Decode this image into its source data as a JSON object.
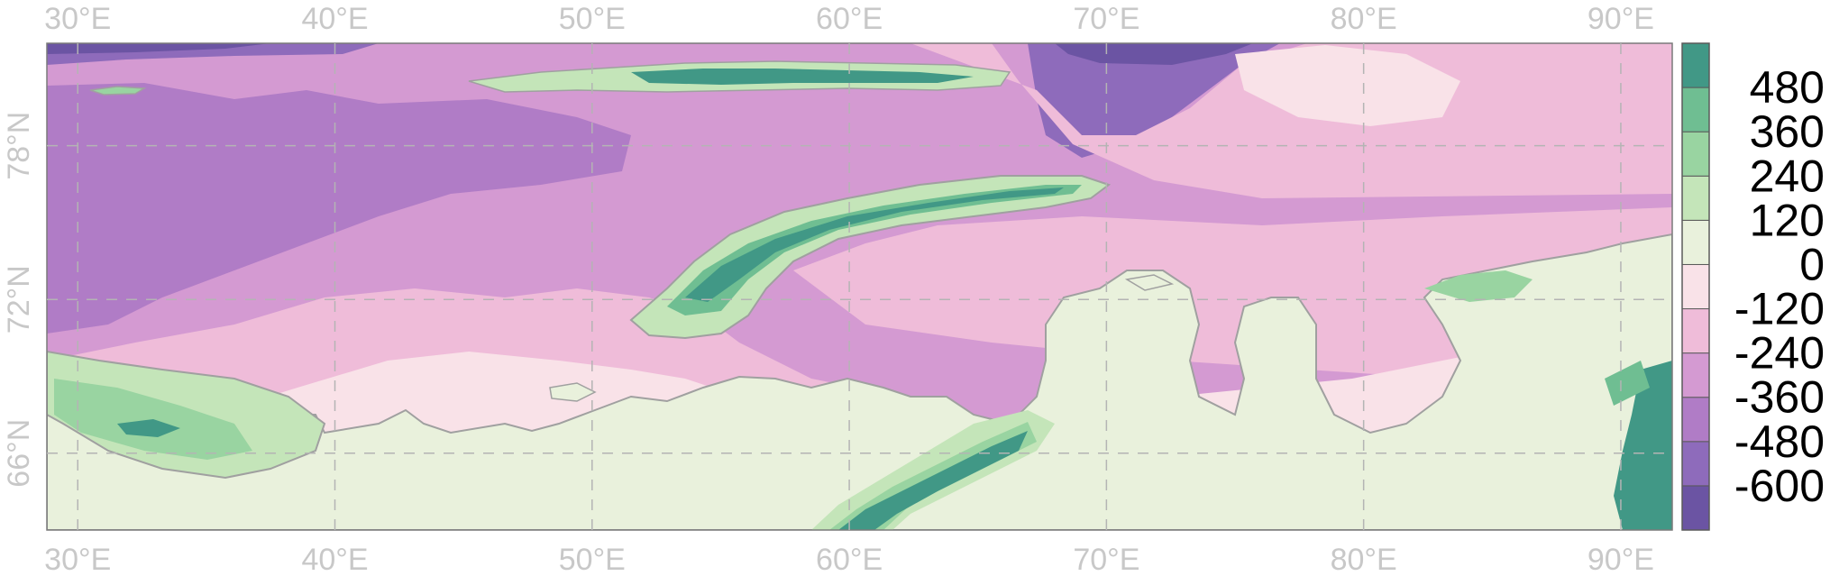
{
  "chart_data": {
    "type": "heatmap",
    "title": "",
    "xlabel": "",
    "ylabel": "",
    "projection": "equirectangular",
    "lon_range": [
      28.8,
      92.0
    ],
    "lat_range": [
      63.0,
      82.0
    ],
    "x_ticks": [
      {
        "value": 30,
        "label": "30°E"
      },
      {
        "value": 40,
        "label": "40°E"
      },
      {
        "value": 50,
        "label": "50°E"
      },
      {
        "value": 60,
        "label": "60°E"
      },
      {
        "value": 70,
        "label": "70°E"
      },
      {
        "value": 80,
        "label": "80°E"
      },
      {
        "value": 90,
        "label": "90°E"
      }
    ],
    "y_ticks": [
      {
        "value": 66,
        "label": "66°N"
      },
      {
        "value": 72,
        "label": "72°N"
      },
      {
        "value": 78,
        "label": "78°N"
      }
    ],
    "grid": true,
    "colorbar": {
      "position": "right",
      "levels": [
        -720,
        -600,
        -480,
        -360,
        -240,
        -120,
        0,
        120,
        240,
        360,
        480,
        600
      ],
      "tick_labels": [
        "480",
        "360",
        "240",
        "120",
        "0",
        "-120",
        "-240",
        "-360",
        "-480",
        "-600"
      ],
      "colors": [
        "#6b54a3",
        "#8e6bbb",
        "#b07cc6",
        "#d49ad2",
        "#efbcd9",
        "#f9e2e8",
        "#e9f1dc",
        "#c4e5b9",
        "#99d4a1",
        "#6fbe92",
        "#419886"
      ]
    }
  },
  "colors": {
    "deep_600": "#6b54a3",
    "deep_480": "#8e6bbb",
    "sea_360": "#b07cc6",
    "sea_240": "#d49ad2",
    "shelf_120": "#efbcd9",
    "shelf_0": "#f9e2e8",
    "land_0": "#e9f1dc",
    "land_120": "#c4e5b9",
    "land_240": "#99d4a1",
    "land_360": "#6fbe92",
    "land_480": "#419886",
    "coastline": "#a0a0a0",
    "gridline": "#b4b4b4",
    "tick_text": "#c8c8c8"
  }
}
